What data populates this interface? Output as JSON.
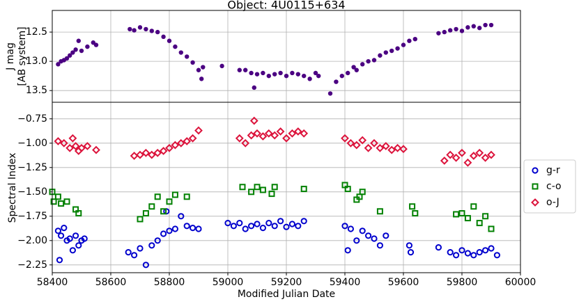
{
  "chart_data": [
    {
      "type": "scatter",
      "title": "Object: 4U0115+634",
      "ylabel": [
        "J mag",
        "[AB system]"
      ],
      "ylim": [
        13.7,
        12.13
      ],
      "yticks": [
        {
          "value": 12.5,
          "label": "12.5"
        },
        {
          "value": 13.0,
          "label": "13.0"
        },
        {
          "value": 13.5,
          "label": "13.5"
        }
      ],
      "grid": true,
      "series": [
        {
          "color": "#4b0082",
          "marker": "filled-circle",
          "x": [
            58420,
            58430,
            58440,
            58450,
            58460,
            58470,
            58480,
            58490,
            58500,
            58520,
            58540,
            58550,
            58665,
            58680,
            58700,
            58720,
            58740,
            58760,
            58780,
            58800,
            58820,
            58840,
            58860,
            58880,
            58900,
            58910,
            58915,
            58980,
            59040,
            59060,
            59080,
            59090,
            59100,
            59120,
            59140,
            59160,
            59180,
            59200,
            59220,
            59240,
            59260,
            59280,
            59300,
            59310,
            59350,
            59370,
            59390,
            59410,
            59430,
            59440,
            59460,
            59480,
            59500,
            59520,
            59540,
            59560,
            59580,
            59600,
            59620,
            59640,
            59720,
            59740,
            59760,
            59780,
            59800,
            59820,
            59840,
            59860,
            59880,
            59900
          ],
          "values": [
            13.05,
            13.0,
            12.98,
            12.95,
            12.9,
            12.85,
            12.8,
            12.65,
            12.82,
            12.75,
            12.68,
            12.72,
            12.45,
            12.47,
            12.42,
            12.45,
            12.48,
            12.5,
            12.58,
            12.65,
            12.75,
            12.85,
            12.92,
            13.02,
            13.15,
            13.3,
            13.1,
            13.08,
            13.15,
            13.15,
            13.2,
            13.45,
            13.22,
            13.2,
            13.25,
            13.22,
            13.2,
            13.25,
            13.2,
            13.22,
            13.25,
            13.3,
            13.2,
            13.25,
            13.55,
            13.35,
            13.25,
            13.2,
            13.1,
            13.15,
            13.05,
            13.0,
            12.98,
            12.9,
            12.85,
            12.82,
            12.78,
            12.72,
            12.65,
            12.62,
            12.52,
            12.5,
            12.47,
            12.45,
            12.48,
            12.42,
            12.4,
            12.43,
            12.38,
            12.38
          ]
        }
      ]
    },
    {
      "type": "scatter",
      "xlabel": "Modified Julian Date",
      "ylabel": "Spectral Index",
      "xlim": [
        58400,
        60000
      ],
      "xticks": [
        58400,
        58600,
        58800,
        59000,
        59200,
        59400,
        59600,
        59800,
        60000
      ],
      "ylim": [
        -2.33,
        -0.58
      ],
      "yticks": [
        {
          "value": -0.75,
          "label": "−0.75"
        },
        {
          "value": -1.0,
          "label": "−1.00"
        },
        {
          "value": -1.25,
          "label": "−1.25"
        },
        {
          "value": -1.5,
          "label": "−1.50"
        },
        {
          "value": -1.75,
          "label": "−1.75"
        },
        {
          "value": -2.0,
          "label": "−2.00"
        },
        {
          "value": -2.25,
          "label": "−2.25"
        }
      ],
      "grid": true,
      "legend": "right",
      "series": [
        {
          "name": "g-r",
          "color": "#0000cd",
          "marker": "circle",
          "x": [
            58420,
            58425,
            58430,
            58440,
            58450,
            58460,
            58470,
            58480,
            58490,
            58500,
            58510,
            58660,
            58680,
            58700,
            58720,
            58740,
            58760,
            58780,
            58790,
            58800,
            58820,
            58840,
            58860,
            58880,
            58900,
            59000,
            59020,
            59040,
            59060,
            59080,
            59100,
            59120,
            59140,
            59160,
            59180,
            59200,
            59220,
            59240,
            59260,
            59400,
            59410,
            59420,
            59440,
            59460,
            59480,
            59500,
            59520,
            59540,
            59620,
            59625,
            59720,
            59760,
            59780,
            59800,
            59820,
            59840,
            59860,
            59880,
            59900,
            59920
          ],
          "values": [
            -1.9,
            -2.2,
            -1.95,
            -1.87,
            -2.0,
            -1.98,
            -2.1,
            -1.95,
            -2.05,
            -2.0,
            -1.98,
            -2.12,
            -2.15,
            -2.08,
            -2.25,
            -2.05,
            -2.0,
            -1.93,
            -1.7,
            -1.9,
            -1.88,
            -1.75,
            -1.85,
            -1.87,
            -1.88,
            -1.82,
            -1.85,
            -1.82,
            -1.88,
            -1.85,
            -1.83,
            -1.87,
            -1.82,
            -1.85,
            -1.8,
            -1.86,
            -1.83,
            -1.85,
            -1.8,
            -1.85,
            -2.1,
            -1.88,
            -2.0,
            -1.9,
            -1.95,
            -1.98,
            -2.05,
            -1.95,
            -2.05,
            -2.12,
            -2.07,
            -2.12,
            -2.15,
            -2.1,
            -2.13,
            -2.15,
            -2.12,
            -2.1,
            -2.08,
            -2.15
          ]
        },
        {
          "name": "c-o",
          "color": "#008000",
          "marker": "square",
          "x": [
            58400,
            58405,
            58420,
            58430,
            58450,
            58480,
            58490,
            58700,
            58720,
            58740,
            58760,
            58780,
            58800,
            58820,
            58860,
            59050,
            59080,
            59100,
            59120,
            59150,
            59160,
            59260,
            59400,
            59410,
            59440,
            59450,
            59460,
            59520,
            59630,
            59640,
            59780,
            59800,
            59820,
            59840,
            59860,
            59880,
            59900
          ],
          "values": [
            -1.5,
            -1.6,
            -1.55,
            -1.62,
            -1.6,
            -1.68,
            -1.72,
            -1.78,
            -1.72,
            -1.65,
            -1.55,
            -1.7,
            -1.6,
            -1.53,
            -1.55,
            -1.45,
            -1.5,
            -1.45,
            -1.48,
            -1.52,
            -1.45,
            -1.47,
            -1.43,
            -1.47,
            -1.58,
            -1.55,
            -1.5,
            -1.7,
            -1.65,
            -1.72,
            -1.73,
            -1.72,
            -1.77,
            -1.65,
            -1.82,
            -1.75,
            -1.88
          ]
        },
        {
          "name": "o-J",
          "color": "#dc143c",
          "marker": "diamond",
          "x": [
            58420,
            58440,
            58460,
            58470,
            58480,
            58490,
            58500,
            58520,
            58550,
            58680,
            58700,
            58720,
            58740,
            58760,
            58780,
            58800,
            58820,
            58840,
            58860,
            58880,
            58900,
            59040,
            59060,
            59080,
            59090,
            59100,
            59120,
            59140,
            59160,
            59180,
            59200,
            59220,
            59240,
            59260,
            59400,
            59420,
            59440,
            59460,
            59480,
            59500,
            59520,
            59540,
            59560,
            59580,
            59600,
            59740,
            59760,
            59780,
            59800,
            59820,
            59840,
            59860,
            59880,
            59900
          ],
          "values": [
            -0.98,
            -1.0,
            -1.05,
            -0.95,
            -1.03,
            -1.08,
            -1.05,
            -1.03,
            -1.07,
            -1.13,
            -1.12,
            -1.1,
            -1.12,
            -1.1,
            -1.08,
            -1.05,
            -1.02,
            -1.0,
            -0.98,
            -0.95,
            -0.87,
            -0.95,
            -1.0,
            -0.92,
            -0.77,
            -0.9,
            -0.93,
            -0.9,
            -0.92,
            -0.88,
            -0.95,
            -0.9,
            -0.88,
            -0.9,
            -0.95,
            -1.0,
            -1.02,
            -0.97,
            -1.05,
            -1.0,
            -1.05,
            -1.03,
            -1.07,
            -1.05,
            -1.06,
            -1.18,
            -1.12,
            -1.15,
            -1.1,
            -1.2,
            -1.13,
            -1.1,
            -1.15,
            -1.12
          ]
        }
      ]
    }
  ]
}
